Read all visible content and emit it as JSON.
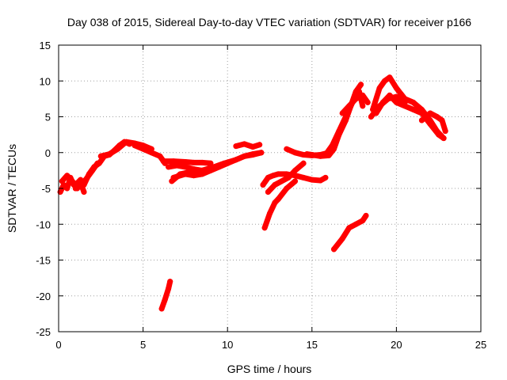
{
  "chart_data": {
    "type": "scatter",
    "title": "Day 038 of 2015, Sidereal Day-to-day VTEC variation (SDTVAR) for receiver p166",
    "xlabel": "GPS time / hours",
    "ylabel": "SDTVAR / TECUs",
    "xlim": [
      0,
      25
    ],
    "ylim": [
      -25,
      15
    ],
    "xticks": [
      0,
      5,
      10,
      15,
      20,
      25
    ],
    "yticks": [
      -25,
      -20,
      -15,
      -10,
      -5,
      0,
      5,
      10,
      15
    ],
    "grid": true,
    "color": "#ff0000",
    "series": [
      {
        "x": [
          0.1,
          0.3,
          0.5,
          0.7,
          0.9,
          1.1,
          1.3,
          1.5
        ],
        "y": [
          -5.5,
          -4.5,
          -5.0,
          -3.5,
          -4.5,
          -5.0,
          -4.2,
          -5.5
        ]
      },
      {
        "x": [
          0.2,
          0.5,
          0.8,
          1.0,
          1.3
        ],
        "y": [
          -4.0,
          -3.2,
          -4.0,
          -4.5,
          -3.8
        ]
      },
      {
        "x": [
          1.5,
          1.8,
          2.1,
          2.4,
          2.7,
          3.0,
          3.3,
          3.6,
          3.9,
          4.2
        ],
        "y": [
          -4.5,
          -3.0,
          -2.0,
          -1.5,
          -0.5,
          -0.3,
          0.3,
          1.0,
          1.5,
          1.2
        ]
      },
      {
        "x": [
          1.0,
          1.3,
          1.6,
          2.0,
          2.3
        ],
        "y": [
          -5.0,
          -4.5,
          -3.8,
          -2.5,
          -1.5
        ]
      },
      {
        "x": [
          2.5,
          3.0,
          3.5,
          4.0,
          4.5,
          5.0,
          5.5
        ],
        "y": [
          -0.5,
          -0.2,
          0.5,
          1.5,
          1.3,
          1.0,
          0.5
        ]
      },
      {
        "x": [
          4.5,
          5.0,
          5.5,
          6.0,
          6.3
        ],
        "y": [
          1.0,
          0.5,
          0.0,
          -0.5,
          -1.5
        ]
      },
      {
        "x": [
          6.2,
          6.8,
          7.5,
          8.0,
          8.5,
          9.0
        ],
        "y": [
          -1.2,
          -1.2,
          -1.3,
          -1.4,
          -1.4,
          -1.5
        ]
      },
      {
        "x": [
          6.5,
          7.0,
          7.5,
          8.0,
          8.5,
          9.0,
          9.5,
          10.0,
          10.5,
          11.0,
          11.5,
          12.0
        ],
        "y": [
          -2.0,
          -1.8,
          -2.0,
          -2.3,
          -2.5,
          -2.2,
          -1.8,
          -1.5,
          -1.0,
          -0.5,
          -0.3,
          0.0
        ]
      },
      {
        "x": [
          6.7,
          7.2,
          7.8,
          8.5,
          9.2,
          9.8,
          10.5,
          11.0,
          11.5,
          12.0
        ],
        "y": [
          -4.0,
          -3.0,
          -2.7,
          -2.5,
          -2.0,
          -1.5,
          -1.0,
          -0.5,
          -0.2,
          0.0
        ]
      },
      {
        "x": [
          6.8,
          7.5,
          8.0,
          8.5,
          9.0,
          9.5,
          10.0
        ],
        "y": [
          -3.5,
          -3.0,
          -3.2,
          -3.0,
          -2.5,
          -2.0,
          -1.5
        ]
      },
      {
        "x": [
          10.5,
          11.0,
          11.5,
          11.9
        ],
        "y": [
          0.9,
          1.2,
          0.8,
          1.1
        ]
      },
      {
        "x": [
          12.1,
          12.4,
          12.7,
          13.0,
          13.5,
          14.0,
          14.5,
          15.0,
          15.5,
          15.8
        ],
        "y": [
          -4.5,
          -3.5,
          -3.2,
          -3.0,
          -3.0,
          -3.2,
          -3.5,
          -3.8,
          -3.9,
          -3.5
        ]
      },
      {
        "x": [
          12.2,
          12.5,
          12.8,
          13.0,
          13.5,
          14.0
        ],
        "y": [
          -10.5,
          -8.5,
          -7.0,
          -6.5,
          -5.0,
          -4.0
        ]
      },
      {
        "x": [
          12.4,
          12.8,
          13.2,
          13.6,
          14.0,
          14.5
        ],
        "y": [
          -5.5,
          -4.5,
          -4.0,
          -3.5,
          -2.5,
          -1.5
        ]
      },
      {
        "x": [
          13.5,
          14.0,
          14.5,
          15.0,
          15.5,
          16.0
        ],
        "y": [
          0.5,
          0.0,
          -0.3,
          -0.4,
          -0.3,
          0.0
        ]
      },
      {
        "x": [
          14.7,
          15.0,
          15.5,
          16.0,
          16.3,
          16.6,
          17.0,
          17.3,
          17.6,
          17.9
        ],
        "y": [
          -0.2,
          -0.3,
          -0.5,
          -0.4,
          0.5,
          2.5,
          4.5,
          6.5,
          8.5,
          9.5
        ]
      },
      {
        "x": [
          15.8,
          16.2,
          16.6,
          17.0,
          17.4,
          17.8,
          18.0
        ],
        "y": [
          -0.3,
          1.0,
          3.0,
          5.0,
          7.0,
          8.5,
          6.5
        ]
      },
      {
        "x": [
          16.8,
          17.2,
          17.6,
          18.0,
          18.3
        ],
        "y": [
          5.5,
          6.5,
          7.5,
          8.0,
          7.0
        ]
      },
      {
        "x": [
          16.3,
          16.8,
          17.2,
          17.6,
          18.0,
          18.2
        ],
        "y": [
          -13.5,
          -12.0,
          -10.5,
          -10.0,
          -9.5,
          -8.8
        ]
      },
      {
        "x": [
          18.6,
          19.0,
          19.3,
          19.6,
          20.0,
          20.5,
          21.0,
          21.5,
          22.0,
          22.4,
          22.8
        ],
        "y": [
          6.0,
          9.0,
          10.0,
          10.5,
          9.0,
          7.5,
          7.0,
          6.0,
          4.5,
          3.0,
          2.0
        ]
      },
      {
        "x": [
          18.8,
          19.2,
          19.6,
          20.0,
          20.5,
          21.0,
          21.5,
          22.0,
          22.5,
          22.8
        ],
        "y": [
          5.5,
          7.0,
          8.0,
          7.0,
          6.5,
          6.0,
          5.5,
          4.0,
          2.5,
          2.0
        ]
      },
      {
        "x": [
          18.5,
          19.0,
          19.5,
          20.0,
          20.5
        ],
        "y": [
          5.0,
          6.5,
          7.5,
          7.8,
          7.0
        ]
      },
      {
        "x": [
          21.5,
          22.0,
          22.4,
          22.7,
          22.9
        ],
        "y": [
          4.5,
          5.5,
          5.0,
          4.5,
          3.0
        ]
      },
      {
        "x": [
          6.1,
          6.3,
          6.5,
          6.6
        ],
        "y": [
          -21.8,
          -20.5,
          -19.0,
          -18.0
        ]
      }
    ]
  }
}
